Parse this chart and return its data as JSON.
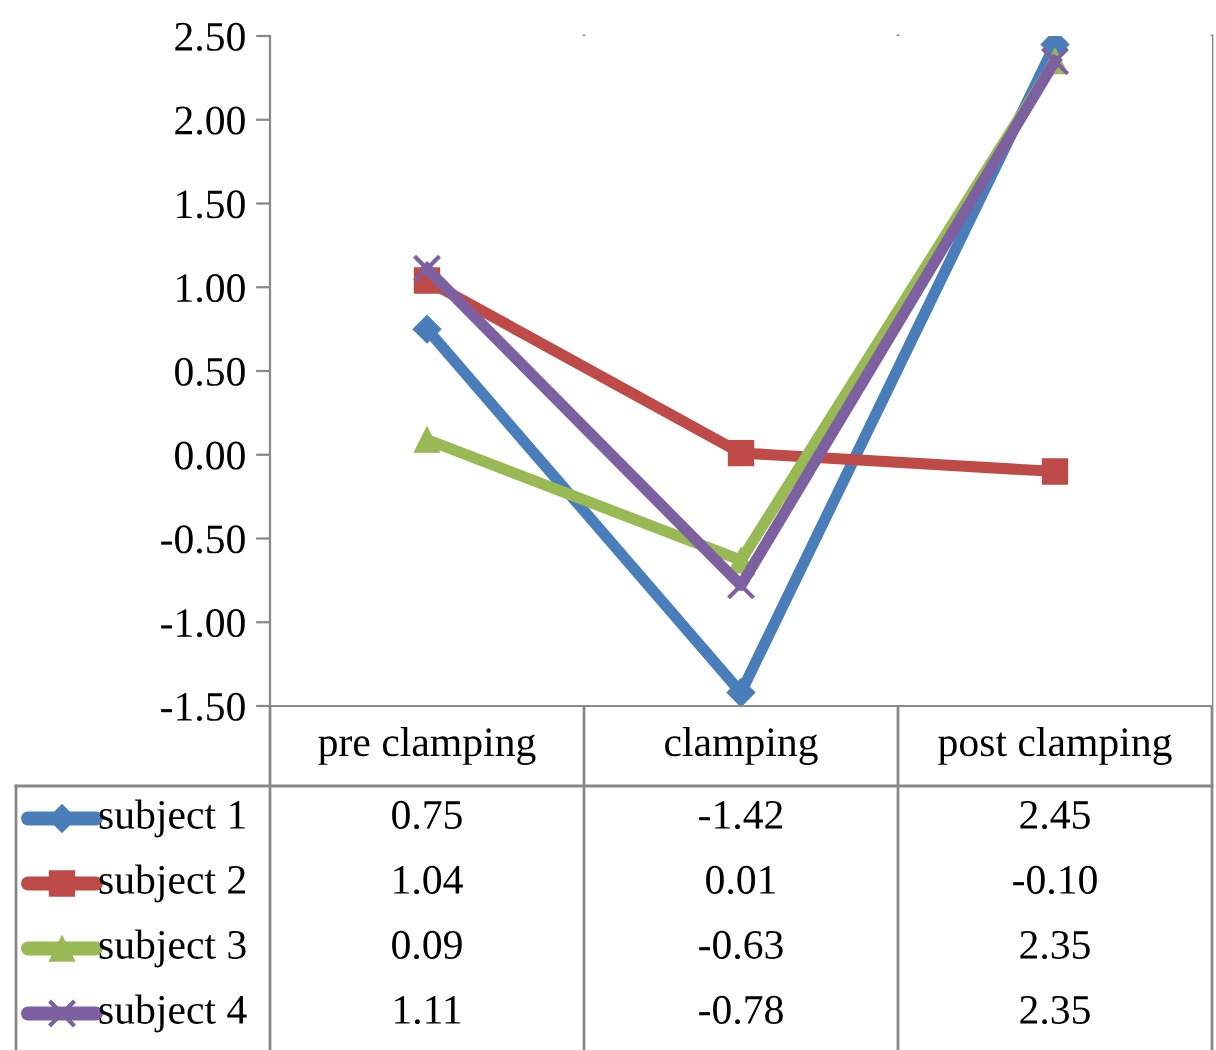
{
  "chart_data": {
    "type": "line",
    "categories": [
      "pre clamping",
      "clamping",
      "post clamping"
    ],
    "series": [
      {
        "name": "subject 1",
        "color": "#4a7ebb",
        "marker": "diamond",
        "values": [
          0.75,
          -1.42,
          2.45
        ],
        "value_labels": [
          "0.75",
          "-1.42",
          "2.45"
        ]
      },
      {
        "name": "subject 2",
        "color": "#be4b48",
        "marker": "square",
        "values": [
          1.04,
          0.01,
          -0.1
        ],
        "value_labels": [
          "1.04",
          "0.01",
          "-0.10"
        ]
      },
      {
        "name": "subject 3",
        "color": "#98b954",
        "marker": "triangle",
        "values": [
          0.09,
          -0.63,
          2.35
        ],
        "value_labels": [
          "0.09",
          "-0.63",
          "2.35"
        ]
      },
      {
        "name": "subject 4",
        "color": "#7d60a0",
        "marker": "cross",
        "values": [
          1.11,
          -0.78,
          2.35
        ],
        "value_labels": [
          "1.11",
          "-0.78",
          "2.35"
        ]
      }
    ],
    "ylim": [
      -1.5,
      2.5
    ],
    "yticks": [
      {
        "value": -1.5,
        "label": "-1.50"
      },
      {
        "value": -1,
        "label": "-1.00"
      },
      {
        "value": -0.5,
        "label": "-0.50"
      },
      {
        "value": 0,
        "label": "0.00"
      },
      {
        "value": 0.5,
        "label": "0.50"
      },
      {
        "value": 1,
        "label": "1.00"
      },
      {
        "value": 1.5,
        "label": "1.50"
      },
      {
        "value": 2,
        "label": "2.00"
      },
      {
        "value": 2.5,
        "label": "2.50"
      }
    ],
    "legend": "bottom",
    "line_style": "solid"
  }
}
